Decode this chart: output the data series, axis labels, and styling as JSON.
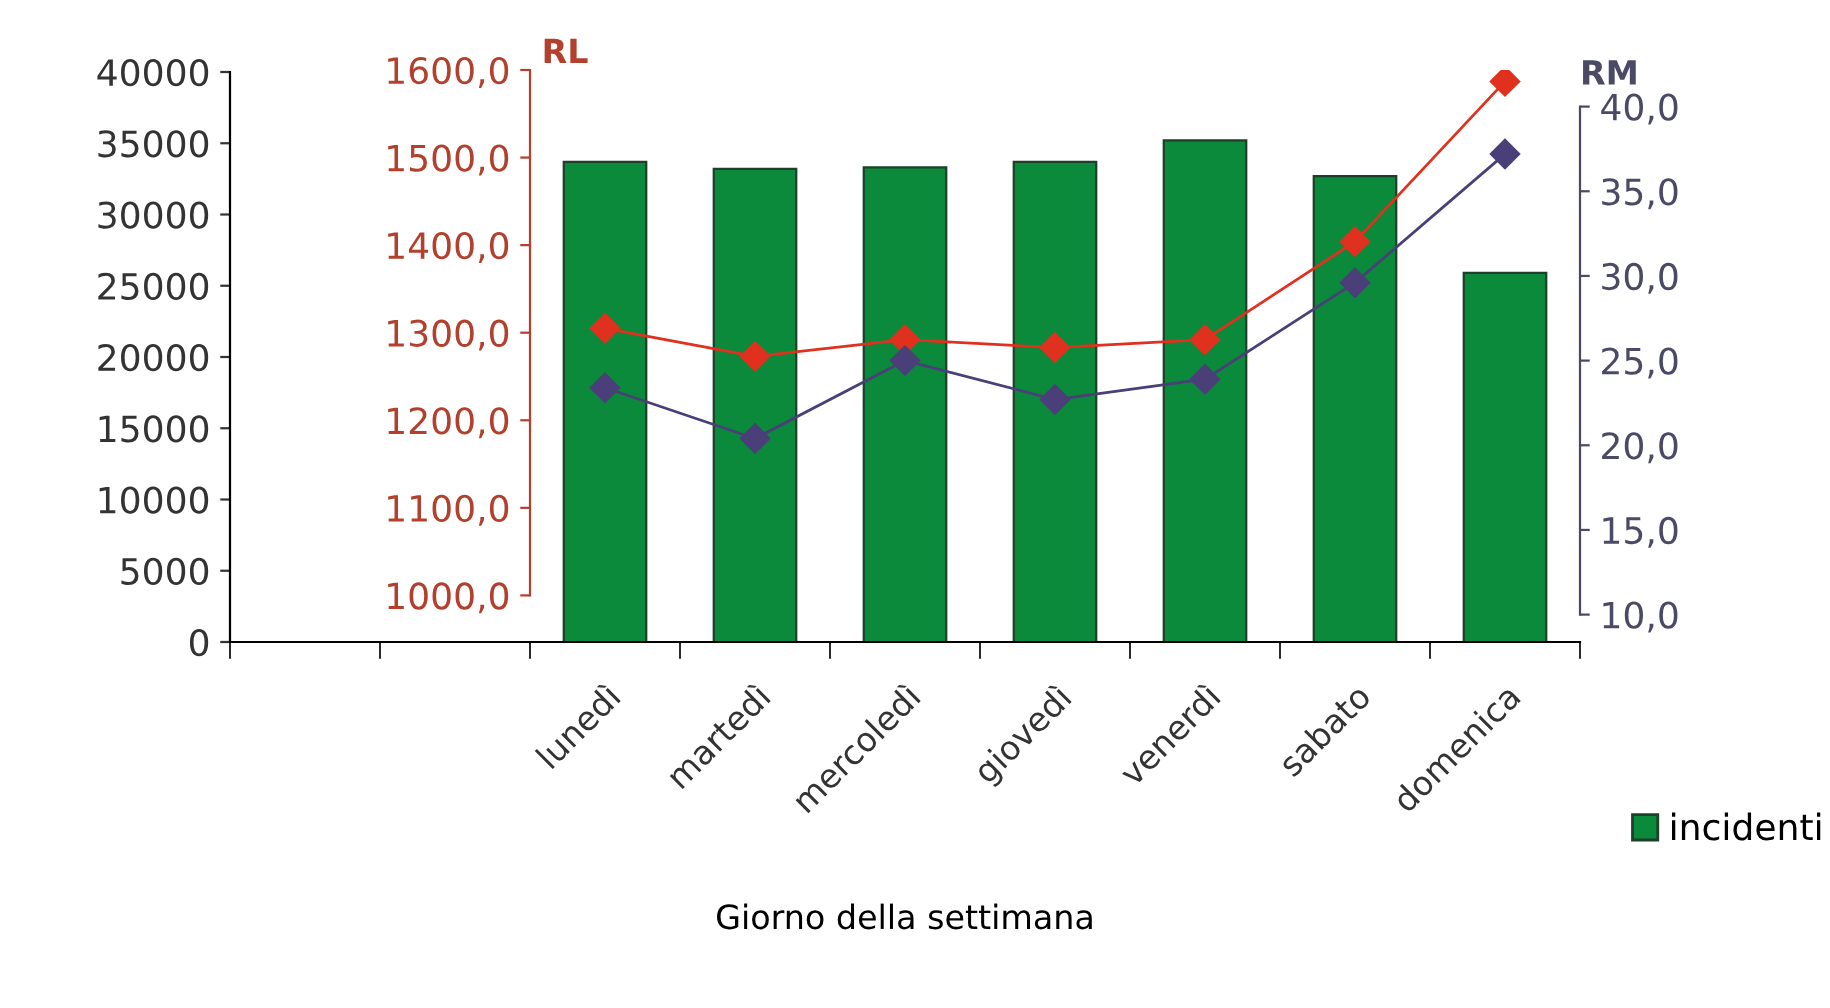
{
  "chart_data": {
    "type": "bar",
    "xlabel": "Giorno della settimana",
    "categories": [
      null,
      null,
      "lunedì",
      "martedì",
      "mercoledì",
      "giovedì",
      "venerdì",
      "sabato",
      "domenica"
    ],
    "series": [
      {
        "name": "incidenti",
        "color": "#0a8a3a",
        "values": [
          null,
          null,
          33700,
          33200,
          33300,
          33700,
          35200,
          32700,
          25900
        ]
      },
      {
        "type": "line",
        "axis": "y2",
        "color": "#e0301e",
        "values": [
          null,
          null,
          1305,
          1273,
          1292,
          1283,
          1292,
          1404,
          1587
        ]
      },
      {
        "type": "line",
        "axis": "y3",
        "color": "#4a3f78",
        "values": [
          null,
          null,
          23.4,
          20.4,
          25.0,
          22.7,
          23.9,
          29.6,
          37.2
        ]
      }
    ],
    "ylim": [
      0,
      40000
    ],
    "yticks": [
      0,
      5000,
      10000,
      15000,
      20000,
      25000,
      30000,
      35000,
      40000
    ],
    "y2label": "RL",
    "y2lim": [
      1000,
      1600
    ],
    "y2ticks": [
      {
        "value": 1000,
        "label": "1000,0"
      },
      {
        "value": 1100,
        "label": "1100,0"
      },
      {
        "value": 1200,
        "label": "1200,0"
      },
      {
        "value": 1300,
        "label": "1300,0"
      },
      {
        "value": 1400,
        "label": "1400,0"
      },
      {
        "value": 1500,
        "label": "1500,0"
      },
      {
        "value": 1600,
        "label": "1600,0"
      }
    ],
    "y3label": "RM",
    "y3lim": [
      10,
      40
    ],
    "y3ticks": [
      {
        "value": 10,
        "label": "10,0"
      },
      {
        "value": 15,
        "label": "15,0"
      },
      {
        "value": 20,
        "label": "20,0"
      },
      {
        "value": 25,
        "label": "25,0"
      },
      {
        "value": 30,
        "label": "30,0"
      },
      {
        "value": 35,
        "label": "35,0"
      },
      {
        "value": 40,
        "label": "40,0"
      }
    ],
    "marker": "diamond",
    "grid": false,
    "legend": "right"
  }
}
